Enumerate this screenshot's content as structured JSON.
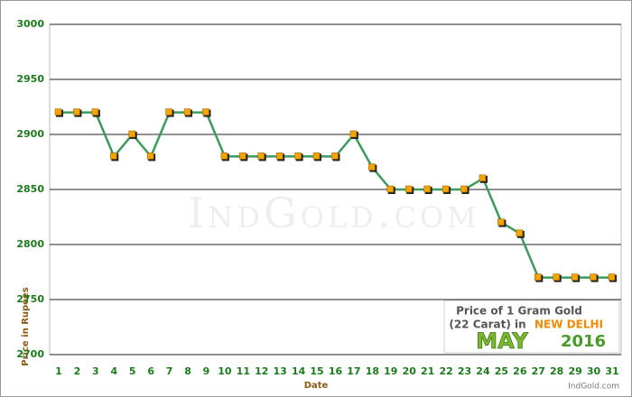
{
  "chart_data": {
    "type": "line",
    "xlabel": "Date",
    "ylabel": "Price in Rupees",
    "watermark": "IndGold.com",
    "box_title": "Price of 1 Gram Gold",
    "box_subtitle": "(22 Carat) in",
    "city": "NEW DELHI",
    "month": "MAY",
    "year": "2016",
    "source": "IndGold.com",
    "categories": [
      "1",
      "2",
      "3",
      "4",
      "5",
      "6",
      "7",
      "8",
      "9",
      "10",
      "11",
      "12",
      "13",
      "14",
      "15",
      "16",
      "17",
      "18",
      "19",
      "20",
      "21",
      "22",
      "23",
      "24",
      "25",
      "26",
      "27",
      "28",
      "29",
      "30",
      "31"
    ],
    "values": [
      2920,
      2920,
      2920,
      2880,
      2900,
      2880,
      2920,
      2920,
      2920,
      2880,
      2880,
      2880,
      2880,
      2880,
      2880,
      2880,
      2900,
      2870,
      2850,
      2850,
      2850,
      2850,
      2850,
      2860,
      2820,
      2810,
      2770,
      2770,
      2770,
      2770,
      2770
    ],
    "color": "#3d9a5e",
    "marker_color": "#f5a300",
    "ylim": [
      2700,
      3000
    ],
    "yticks": [
      2700,
      2750,
      2800,
      2850,
      2900,
      2950,
      3000
    ],
    "grid": true
  }
}
